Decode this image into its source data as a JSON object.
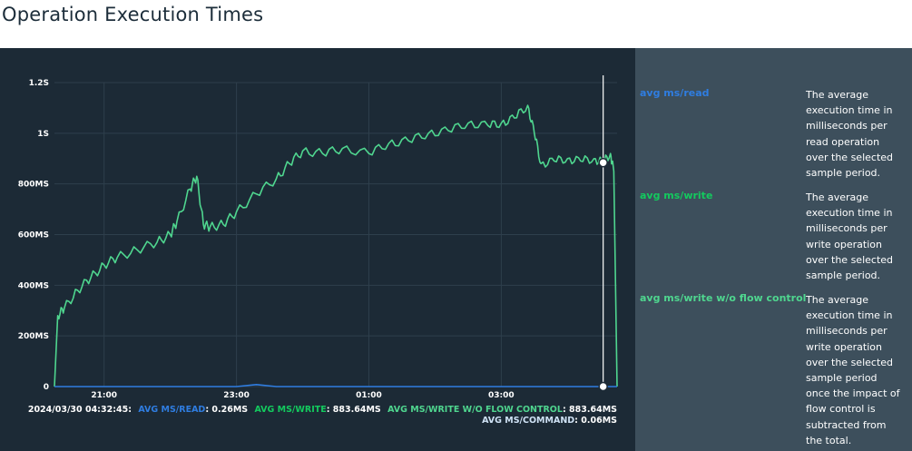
{
  "page": {
    "title": "Operation Execution Times"
  },
  "colors": {
    "panel_bg": "#1c2a36",
    "legend_bg": "#3d4f5c",
    "read": "#2f7de1",
    "write": "#13ca5e",
    "write_wo_flow": "#4fd68f",
    "command": "#cfe2f5",
    "grid": "#2e3f4c"
  },
  "tooltip": {
    "timestamp": "2024/03/30 04:32:45:",
    "read_label": "AVG MS/READ",
    "read_value": ": 0.26MS",
    "write_label": "AVG MS/WRITE",
    "write_value": ": 883.64MS",
    "wo_flow_label": "AVG MS/WRITE W/O FLOW CONTROL",
    "wo_flow_value": ": 883.64MS",
    "command_label": "AVG MS/COMMAND",
    "command_value": ": 0.06MS"
  },
  "legend": [
    {
      "name": "avg ms/read",
      "color": "#2f7de1",
      "lines": [
        "The average",
        "execution time in",
        "milliseconds per",
        "read operation",
        "over the selected",
        "sample period."
      ]
    },
    {
      "name": "avg ms/write",
      "color": "#13ca5e",
      "lines": [
        "The average",
        "execution time in",
        "milliseconds per",
        "write operation",
        "over the selected",
        "sample period."
      ]
    },
    {
      "name": "avg ms/write w/o flow control",
      "color": "#4fd68f",
      "lines": [
        "The average",
        "execution time in",
        "milliseconds per",
        "write operation",
        "over the selected",
        "sample period",
        "once the impact of",
        "flow control is",
        "subtracted from",
        "the total."
      ]
    }
  ],
  "chart_data": {
    "type": "line",
    "title": "",
    "xlabel": "",
    "ylabel": "",
    "y_ticks": [
      "1.2S",
      "1S",
      "800MS",
      "600MS",
      "400MS",
      "200MS",
      "0"
    ],
    "y_tick_values": [
      1200,
      1000,
      800,
      600,
      400,
      200,
      0
    ],
    "x_ticks": [
      "21:00",
      "23:00",
      "01:00",
      "03:00"
    ],
    "x_tick_hours": [
      21,
      23,
      25,
      27
    ],
    "ylim": [
      0,
      1200
    ],
    "xlim_hours": [
      20.25,
      28.75
    ],
    "cursor_hour": 28.54,
    "grid": true,
    "x_hours": [
      20.25,
      20.3,
      20.4,
      20.6,
      20.8,
      21.0,
      21.2,
      21.5,
      21.8,
      22.0,
      22.1,
      22.3,
      22.4,
      22.5,
      22.6,
      22.8,
      23.0,
      23.3,
      23.6,
      23.8,
      24.0,
      24.3,
      24.6,
      25.0,
      25.3,
      25.6,
      25.9,
      26.2,
      26.5,
      26.8,
      27.0,
      27.2,
      27.4,
      27.5,
      27.6,
      27.8,
      28.0,
      28.2,
      28.4,
      28.54,
      28.65,
      28.7,
      28.75
    ],
    "series": [
      {
        "name": "avg ms/write",
        "values": [
          0,
          280,
          310,
          380,
          430,
          480,
          510,
          540,
          570,
          600,
          650,
          780,
          830,
          640,
          630,
          640,
          690,
          760,
          820,
          880,
          930,
          920,
          940,
          920,
          960,
          970,
          1000,
          1010,
          1040,
          1030,
          1040,
          1060,
          1110,
          1000,
          880,
          890,
          900,
          890,
          900,
          884,
          920,
          850,
          0
        ]
      },
      {
        "name": "avg ms/read",
        "values": [
          0,
          0,
          0,
          0,
          0,
          0,
          0,
          0,
          0,
          0,
          0,
          0,
          0,
          0,
          0,
          0,
          0,
          8,
          0,
          0,
          0,
          0,
          0,
          0,
          0,
          0,
          0,
          0,
          0,
          0,
          0,
          0,
          0,
          0,
          0,
          0,
          0,
          0,
          0,
          0,
          0,
          0,
          0
        ]
      }
    ]
  }
}
